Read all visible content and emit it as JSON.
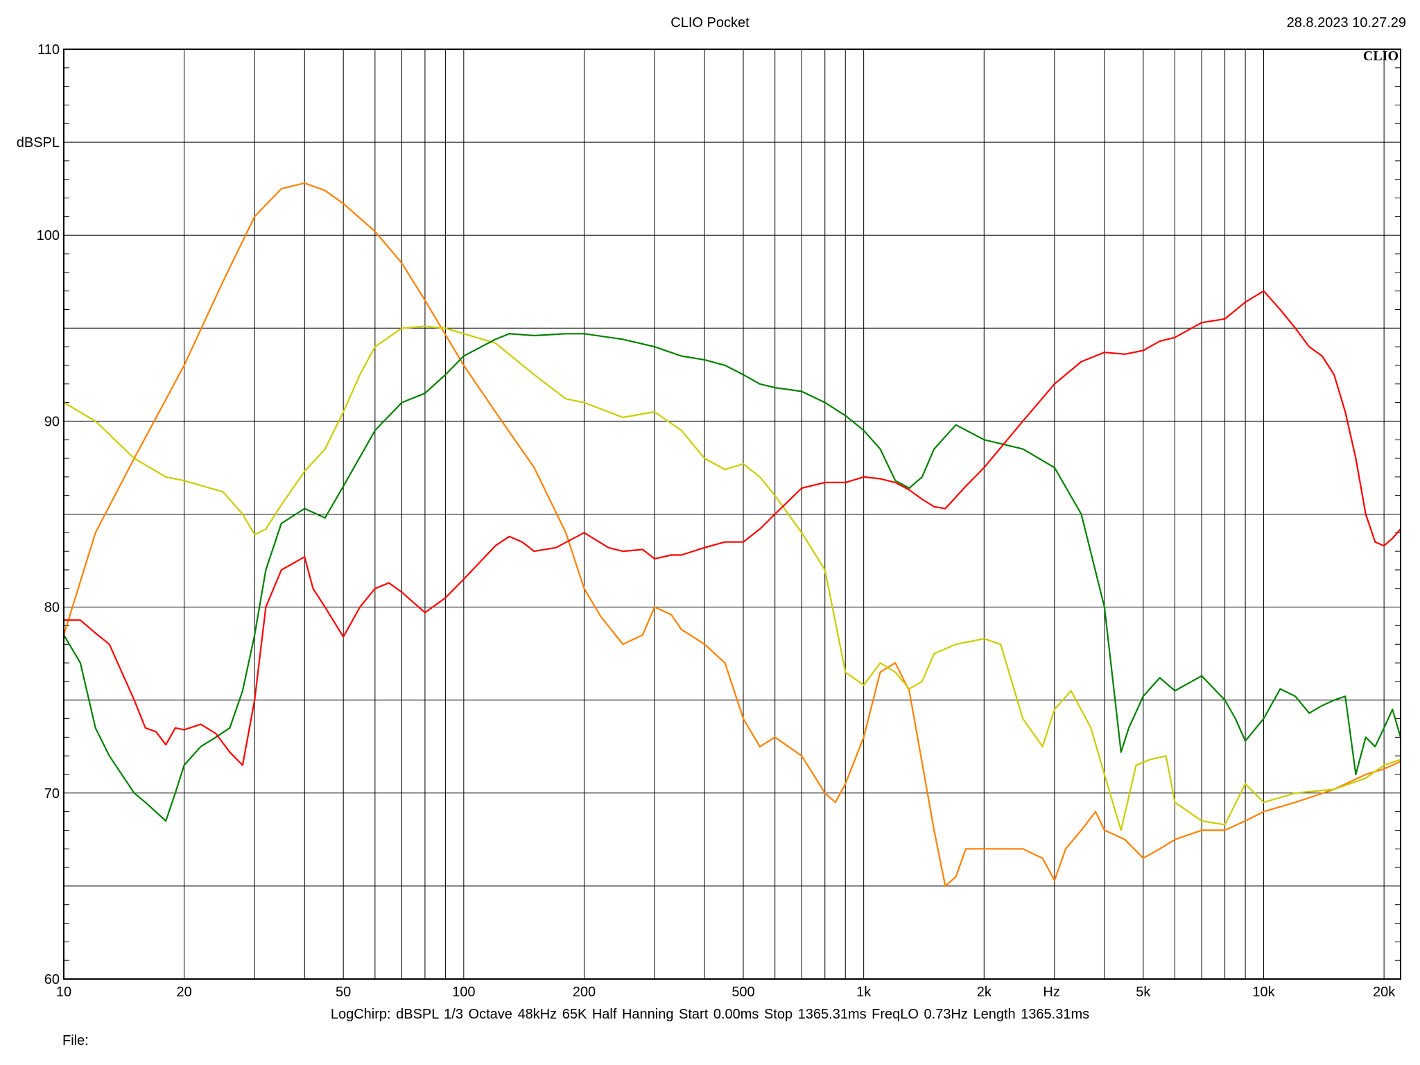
{
  "header": {
    "title": "CLIO Pocket",
    "datetime": "28.8.2023 10.27.29",
    "logo": "CLIO"
  },
  "footer": {
    "settings": "LogChirp:  dBSPL   1/3 Octave   48kHz   65K   Half Hanning   Start 0.00ms   Stop 1365.31ms   FreqLO 0.73Hz   Length 1365.31ms",
    "file_label": "File:"
  },
  "chart_data": {
    "type": "line",
    "title": "CLIO Pocket",
    "xlabel": "Hz",
    "ylabel": "dBSPL",
    "xscale": "log",
    "xlim": [
      10,
      22000
    ],
    "ylim": [
      60,
      110
    ],
    "x_ticks": [
      10,
      20,
      50,
      100,
      200,
      500,
      1000,
      2000,
      5000,
      10000,
      20000
    ],
    "x_tick_labels": [
      "10",
      "20",
      "50",
      "100",
      "200",
      "500",
      "1k",
      "2k",
      "5k",
      "10k",
      "20k"
    ],
    "y_ticks": [
      60,
      70,
      80,
      90,
      100,
      110
    ],
    "y_tick_labels": [
      "60",
      "70",
      "80",
      "90",
      "100",
      "110"
    ],
    "grid": true,
    "series": [
      {
        "color": "#ff8000",
        "points": [
          [
            10,
            78.5
          ],
          [
            12,
            84
          ],
          [
            15,
            88
          ],
          [
            20,
            93
          ],
          [
            25,
            97.5
          ],
          [
            30,
            101
          ],
          [
            35,
            102.5
          ],
          [
            40,
            102.8
          ],
          [
            45,
            102.4
          ],
          [
            50,
            101.7
          ],
          [
            60,
            100.2
          ],
          [
            70,
            98.5
          ],
          [
            80,
            96.5
          ],
          [
            100,
            93
          ],
          [
            120,
            90.5
          ],
          [
            150,
            87.5
          ],
          [
            180,
            84
          ],
          [
            200,
            81
          ],
          [
            220,
            79.5
          ],
          [
            250,
            78
          ],
          [
            280,
            78.5
          ],
          [
            300,
            80
          ],
          [
            330,
            79.6
          ],
          [
            350,
            78.8
          ],
          [
            400,
            78
          ],
          [
            450,
            77
          ],
          [
            500,
            74
          ],
          [
            550,
            72.5
          ],
          [
            600,
            73
          ],
          [
            700,
            72
          ],
          [
            800,
            70
          ],
          [
            850,
            69.5
          ],
          [
            900,
            70.5
          ],
          [
            1000,
            73
          ],
          [
            1100,
            76.5
          ],
          [
            1200,
            77
          ],
          [
            1300,
            75.5
          ],
          [
            1500,
            68
          ],
          [
            1600,
            65
          ],
          [
            1700,
            65.5
          ],
          [
            1800,
            67
          ],
          [
            2000,
            67
          ],
          [
            2500,
            67
          ],
          [
            2800,
            66.5
          ],
          [
            3000,
            65.3
          ],
          [
            3200,
            67
          ],
          [
            3500,
            68
          ],
          [
            3800,
            69
          ],
          [
            4000,
            68
          ],
          [
            4500,
            67.5
          ],
          [
            5000,
            66.5
          ],
          [
            5500,
            67
          ],
          [
            6000,
            67.5
          ],
          [
            7000,
            68
          ],
          [
            8000,
            68
          ],
          [
            9000,
            68.5
          ],
          [
            10000,
            69
          ],
          [
            12000,
            69.5
          ],
          [
            15000,
            70.2
          ],
          [
            18000,
            71
          ],
          [
            20000,
            71.3
          ],
          [
            22000,
            71.7
          ]
        ]
      },
      {
        "color": "#cccc00",
        "points": [
          [
            10,
            91
          ],
          [
            12,
            90
          ],
          [
            15,
            88
          ],
          [
            18,
            87
          ],
          [
            20,
            86.8
          ],
          [
            25,
            86.2
          ],
          [
            28,
            85
          ],
          [
            30,
            83.9
          ],
          [
            32,
            84.2
          ],
          [
            35,
            85.5
          ],
          [
            40,
            87.3
          ],
          [
            45,
            88.5
          ],
          [
            50,
            90.5
          ],
          [
            55,
            92.5
          ],
          [
            60,
            94
          ],
          [
            70,
            95
          ],
          [
            80,
            95.1
          ],
          [
            90,
            95
          ],
          [
            100,
            94.7
          ],
          [
            120,
            94.2
          ],
          [
            150,
            92.5
          ],
          [
            180,
            91.2
          ],
          [
            200,
            91
          ],
          [
            250,
            90.2
          ],
          [
            300,
            90.5
          ],
          [
            350,
            89.5
          ],
          [
            400,
            88
          ],
          [
            450,
            87.4
          ],
          [
            500,
            87.7
          ],
          [
            550,
            87
          ],
          [
            600,
            86
          ],
          [
            700,
            84
          ],
          [
            800,
            82
          ],
          [
            900,
            76.5
          ],
          [
            1000,
            75.8
          ],
          [
            1100,
            77
          ],
          [
            1200,
            76.5
          ],
          [
            1300,
            75.6
          ],
          [
            1400,
            76
          ],
          [
            1500,
            77.5
          ],
          [
            1700,
            78
          ],
          [
            2000,
            78.3
          ],
          [
            2200,
            78
          ],
          [
            2500,
            74
          ],
          [
            2800,
            72.5
          ],
          [
            3000,
            74.5
          ],
          [
            3300,
            75.5
          ],
          [
            3700,
            73.5
          ],
          [
            4000,
            71
          ],
          [
            4400,
            68
          ],
          [
            4800,
            71.5
          ],
          [
            5200,
            71.8
          ],
          [
            5700,
            72
          ],
          [
            6000,
            69.5
          ],
          [
            7000,
            68.5
          ],
          [
            8000,
            68.3
          ],
          [
            9000,
            70.5
          ],
          [
            10000,
            69.5
          ],
          [
            12000,
            70
          ],
          [
            15000,
            70.2
          ],
          [
            18000,
            70.8
          ],
          [
            20000,
            71.5
          ],
          [
            22000,
            71.8
          ]
        ]
      },
      {
        "color": "#008000",
        "points": [
          [
            10,
            78.5
          ],
          [
            11,
            77
          ],
          [
            12,
            73.5
          ],
          [
            13,
            72
          ],
          [
            15,
            70
          ],
          [
            16,
            69.5
          ],
          [
            18,
            68.5
          ],
          [
            19,
            70
          ],
          [
            20,
            71.5
          ],
          [
            22,
            72.5
          ],
          [
            24,
            73
          ],
          [
            26,
            73.5
          ],
          [
            28,
            75.5
          ],
          [
            30,
            78.5
          ],
          [
            32,
            82
          ],
          [
            35,
            84.5
          ],
          [
            40,
            85.3
          ],
          [
            45,
            84.8
          ],
          [
            50,
            86.5
          ],
          [
            60,
            89.5
          ],
          [
            70,
            91
          ],
          [
            80,
            91.5
          ],
          [
            90,
            92.5
          ],
          [
            100,
            93.5
          ],
          [
            120,
            94.4
          ],
          [
            130,
            94.7
          ],
          [
            150,
            94.6
          ],
          [
            180,
            94.7
          ],
          [
            200,
            94.7
          ],
          [
            250,
            94.4
          ],
          [
            300,
            94
          ],
          [
            350,
            93.5
          ],
          [
            400,
            93.3
          ],
          [
            450,
            93
          ],
          [
            500,
            92.5
          ],
          [
            550,
            92
          ],
          [
            600,
            91.8
          ],
          [
            700,
            91.6
          ],
          [
            800,
            91
          ],
          [
            900,
            90.3
          ],
          [
            1000,
            89.5
          ],
          [
            1100,
            88.5
          ],
          [
            1200,
            86.8
          ],
          [
            1300,
            86.4
          ],
          [
            1400,
            87
          ],
          [
            1500,
            88.5
          ],
          [
            1700,
            89.8
          ],
          [
            2000,
            89
          ],
          [
            2500,
            88.5
          ],
          [
            3000,
            87.5
          ],
          [
            3500,
            85
          ],
          [
            4000,
            80
          ],
          [
            4200,
            76
          ],
          [
            4400,
            72.2
          ],
          [
            4600,
            73.5
          ],
          [
            5000,
            75.2
          ],
          [
            5500,
            76.2
          ],
          [
            6000,
            75.5
          ],
          [
            7000,
            76.3
          ],
          [
            8000,
            75
          ],
          [
            8500,
            74
          ],
          [
            9000,
            72.8
          ],
          [
            10000,
            74
          ],
          [
            11000,
            75.6
          ],
          [
            12000,
            75.2
          ],
          [
            13000,
            74.3
          ],
          [
            14000,
            74.7
          ],
          [
            15000,
            75
          ],
          [
            16000,
            75.2
          ],
          [
            17000,
            71
          ],
          [
            18000,
            73
          ],
          [
            19000,
            72.5
          ],
          [
            20000,
            73.5
          ],
          [
            21000,
            74.5
          ],
          [
            22000,
            73
          ]
        ]
      },
      {
        "color": "#ff0000",
        "points": [
          [
            10,
            79.3
          ],
          [
            11,
            79.3
          ],
          [
            12,
            78.6
          ],
          [
            13,
            78
          ],
          [
            15,
            75
          ],
          [
            16,
            73.5
          ],
          [
            17,
            73.3
          ],
          [
            18,
            72.6
          ],
          [
            19,
            73.5
          ],
          [
            20,
            73.4
          ],
          [
            22,
            73.7
          ],
          [
            24,
            73.2
          ],
          [
            26,
            72.2
          ],
          [
            28,
            71.5
          ],
          [
            30,
            75
          ],
          [
            32,
            80
          ],
          [
            35,
            82
          ],
          [
            40,
            82.7
          ],
          [
            42,
            81
          ],
          [
            45,
            80
          ],
          [
            50,
            78.4
          ],
          [
            55,
            80
          ],
          [
            60,
            81
          ],
          [
            65,
            81.3
          ],
          [
            70,
            80.8
          ],
          [
            80,
            79.7
          ],
          [
            90,
            80.5
          ],
          [
            100,
            81.5
          ],
          [
            120,
            83.3
          ],
          [
            130,
            83.8
          ],
          [
            140,
            83.5
          ],
          [
            150,
            83
          ],
          [
            170,
            83.2
          ],
          [
            200,
            84
          ],
          [
            230,
            83.2
          ],
          [
            250,
            83
          ],
          [
            280,
            83.1
          ],
          [
            300,
            82.6
          ],
          [
            330,
            82.8
          ],
          [
            350,
            82.8
          ],
          [
            400,
            83.2
          ],
          [
            450,
            83.5
          ],
          [
            500,
            83.5
          ],
          [
            550,
            84.2
          ],
          [
            600,
            85
          ],
          [
            700,
            86.4
          ],
          [
            800,
            86.7
          ],
          [
            900,
            86.7
          ],
          [
            1000,
            87
          ],
          [
            1100,
            86.9
          ],
          [
            1200,
            86.7
          ],
          [
            1300,
            86.3
          ],
          [
            1400,
            85.8
          ],
          [
            1500,
            85.4
          ],
          [
            1600,
            85.3
          ],
          [
            1800,
            86.5
          ],
          [
            2000,
            87.5
          ],
          [
            2500,
            90
          ],
          [
            3000,
            92
          ],
          [
            3500,
            93.2
          ],
          [
            4000,
            93.7
          ],
          [
            4500,
            93.6
          ],
          [
            5000,
            93.8
          ],
          [
            5500,
            94.3
          ],
          [
            6000,
            94.5
          ],
          [
            7000,
            95.3
          ],
          [
            7500,
            95.4
          ],
          [
            8000,
            95.5
          ],
          [
            9000,
            96.4
          ],
          [
            10000,
            97
          ],
          [
            11000,
            96
          ],
          [
            12000,
            95
          ],
          [
            13000,
            94
          ],
          [
            14000,
            93.5
          ],
          [
            15000,
            92.5
          ],
          [
            16000,
            90.5
          ],
          [
            17000,
            88
          ],
          [
            18000,
            85
          ],
          [
            19000,
            83.5
          ],
          [
            20000,
            83.3
          ],
          [
            21000,
            83.7
          ],
          [
            22000,
            84.2
          ]
        ]
      }
    ]
  }
}
